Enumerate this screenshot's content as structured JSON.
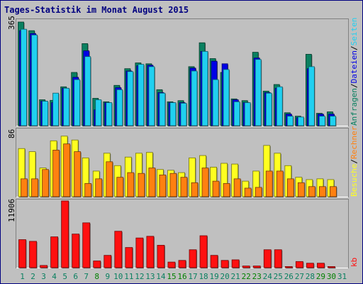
{
  "title": "Tages-Statistik im Monat August 2015",
  "colors": {
    "background": "#c0c0c0",
    "frame": "#000080",
    "title": "#000080",
    "anfragen": "#0a8060",
    "dateien": "#0000e6",
    "seiten": "#20d0f0",
    "besuche": "#ffff20",
    "rechner": "#ff8010",
    "kb": "#ff1010",
    "weekday_label": "#0a8060",
    "weekend_label": "#008000"
  },
  "y_labels": {
    "top": "365",
    "middle": "86",
    "bottom": "11906"
  },
  "right_labels": {
    "top": [
      {
        "text": "Anfragen",
        "color": "#0a8060"
      },
      {
        "text": "Dateien",
        "color": "#0000e6"
      },
      {
        "text": "Seiten",
        "color": "#20d0f0"
      }
    ],
    "middle": [
      {
        "text": "Besuche",
        "color": "#ffff20"
      },
      {
        "text": "Rechner",
        "color": "#ff8010"
      }
    ],
    "bottom": [
      {
        "text": "kb",
        "color": "#ff1010"
      }
    ],
    "separator": "/"
  },
  "chart_data": [
    {
      "type": "bar",
      "panel": "top",
      "categories": [
        "1",
        "2",
        "3",
        "4",
        "5",
        "6",
        "7",
        "8",
        "9",
        "10",
        "11",
        "12",
        "13",
        "14",
        "15",
        "16",
        "17",
        "18",
        "19",
        "20",
        "21",
        "22",
        "23",
        "24",
        "25",
        "26",
        "27",
        "28",
        "29",
        "30",
        "31"
      ],
      "weekend_days": [
        "8",
        "15",
        "16",
        "22",
        "23",
        "29",
        "30"
      ],
      "ylim": [
        0,
        365
      ],
      "series": [
        {
          "name": "Anfragen",
          "values": [
            360,
            330,
            90,
            88,
            135,
            185,
            285,
            95,
            83,
            140,
            198,
            218,
            215,
            125,
            83,
            87,
            205,
            288,
            233,
            185,
            93,
            87,
            255,
            120,
            143,
            45,
            33,
            248,
            43,
            48,
            1
          ]
        },
        {
          "name": "Dateien",
          "values": [
            330,
            320,
            85,
            80,
            130,
            168,
            260,
            55,
            80,
            132,
            190,
            208,
            210,
            115,
            80,
            80,
            200,
            258,
            224,
            215,
            90,
            80,
            235,
            115,
            130,
            40,
            28,
            198,
            40,
            40,
            0
          ]
        },
        {
          "name": "Seiten",
          "values": [
            335,
            315,
            85,
            113,
            130,
            160,
            240,
            90,
            80,
            125,
            188,
            213,
            205,
            113,
            80,
            78,
            190,
            258,
            160,
            195,
            83,
            80,
            230,
            113,
            135,
            33,
            30,
            205,
            33,
            33,
            0
          ]
        }
      ]
    },
    {
      "type": "bar",
      "panel": "middle",
      "categories": [
        "1",
        "2",
        "3",
        "4",
        "5",
        "6",
        "7",
        "8",
        "9",
        "10",
        "11",
        "12",
        "13",
        "14",
        "15",
        "16",
        "17",
        "18",
        "19",
        "20",
        "21",
        "22",
        "23",
        "24",
        "25",
        "26",
        "27",
        "28",
        "29",
        "30",
        "31"
      ],
      "ylim": [
        0,
        86
      ],
      "series": [
        {
          "name": "Besuche",
          "values": [
            62,
            58,
            37,
            72,
            78,
            73,
            50,
            33,
            56,
            40,
            51,
            56,
            57,
            35,
            34,
            31,
            50,
            53,
            38,
            43,
            42,
            20,
            33,
            66,
            56,
            40,
            25,
            22,
            23,
            22,
            0
          ]
        },
        {
          "name": "Rechner",
          "values": [
            23,
            23,
            35,
            60,
            68,
            58,
            17,
            23,
            45,
            25,
            31,
            30,
            37,
            28,
            30,
            25,
            18,
            37,
            20,
            17,
            23,
            11,
            12,
            33,
            33,
            23,
            18,
            13,
            13,
            13,
            0
          ]
        }
      ]
    },
    {
      "type": "bar",
      "panel": "bottom",
      "categories": [
        "1",
        "2",
        "3",
        "4",
        "5",
        "6",
        "7",
        "8",
        "9",
        "10",
        "11",
        "12",
        "13",
        "14",
        "15",
        "16",
        "17",
        "18",
        "19",
        "20",
        "21",
        "22",
        "23",
        "24",
        "25",
        "26",
        "27",
        "28",
        "29",
        "30",
        "31"
      ],
      "ylim": [
        0,
        11906
      ],
      "series": [
        {
          "name": "kb",
          "values": [
            5000,
            4700,
            400,
            5500,
            11906,
            6000,
            8000,
            1200,
            2200,
            6500,
            3600,
            5300,
            5600,
            4000,
            1000,
            1300,
            3200,
            5700,
            2200,
            1300,
            1400,
            300,
            300,
            3200,
            3200,
            200,
            1100,
            800,
            800,
            200,
            0
          ]
        }
      ]
    }
  ]
}
